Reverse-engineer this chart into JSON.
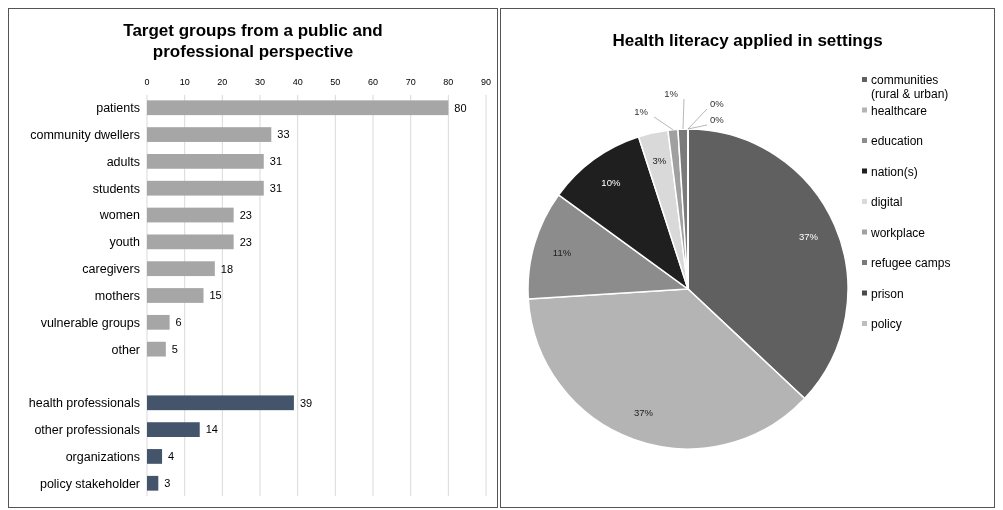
{
  "chart_data": [
    {
      "type": "bar",
      "title": "Target groups from a public and professional perspective",
      "orientation": "horizontal",
      "categories": [
        "patients",
        "community dwellers",
        "adults",
        "students",
        "women",
        "youth",
        "caregivers",
        "mothers",
        "vulnerable groups",
        "other",
        null,
        "health professionals",
        "other professionals",
        "organizations",
        "policy stakeholder"
      ],
      "values": [
        80,
        33,
        31,
        31,
        23,
        23,
        18,
        15,
        6,
        5,
        null,
        39,
        14,
        4,
        3
      ],
      "colors": [
        "#a6a6a6",
        "#a6a6a6",
        "#a6a6a6",
        "#a6a6a6",
        "#a6a6a6",
        "#a6a6a6",
        "#a6a6a6",
        "#a6a6a6",
        "#a6a6a6",
        "#a6a6a6",
        null,
        "#44546a",
        "#44546a",
        "#44546a",
        "#44546a"
      ],
      "xlim": [
        0,
        90
      ],
      "xticks": [
        0,
        10,
        20,
        30,
        40,
        50,
        60,
        70,
        80,
        90
      ],
      "grid": "x",
      "data_labels": true
    },
    {
      "type": "pie",
      "title": "Health literacy applied in settings",
      "categories": [
        "communities (rural & urban)",
        "healthcare",
        "education",
        "nation(s)",
        "digital",
        "workplace",
        "refugee camps",
        "prison",
        "policy"
      ],
      "values": [
        37,
        37,
        11,
        10,
        3,
        1,
        1,
        0,
        0
      ],
      "value_labels": [
        "37%",
        "37%",
        "11%",
        "10%",
        "3%",
        "1%",
        "1%",
        "0%",
        "0%"
      ],
      "colors": [
        "#606060",
        "#b4b4b4",
        "#8c8c8c",
        "#1f1f1f",
        "#d9d9d9",
        "#a0a0a0",
        "#7a7a7a",
        "#4a4a4a",
        "#bdbdbd"
      ],
      "legend": "right"
    }
  ]
}
